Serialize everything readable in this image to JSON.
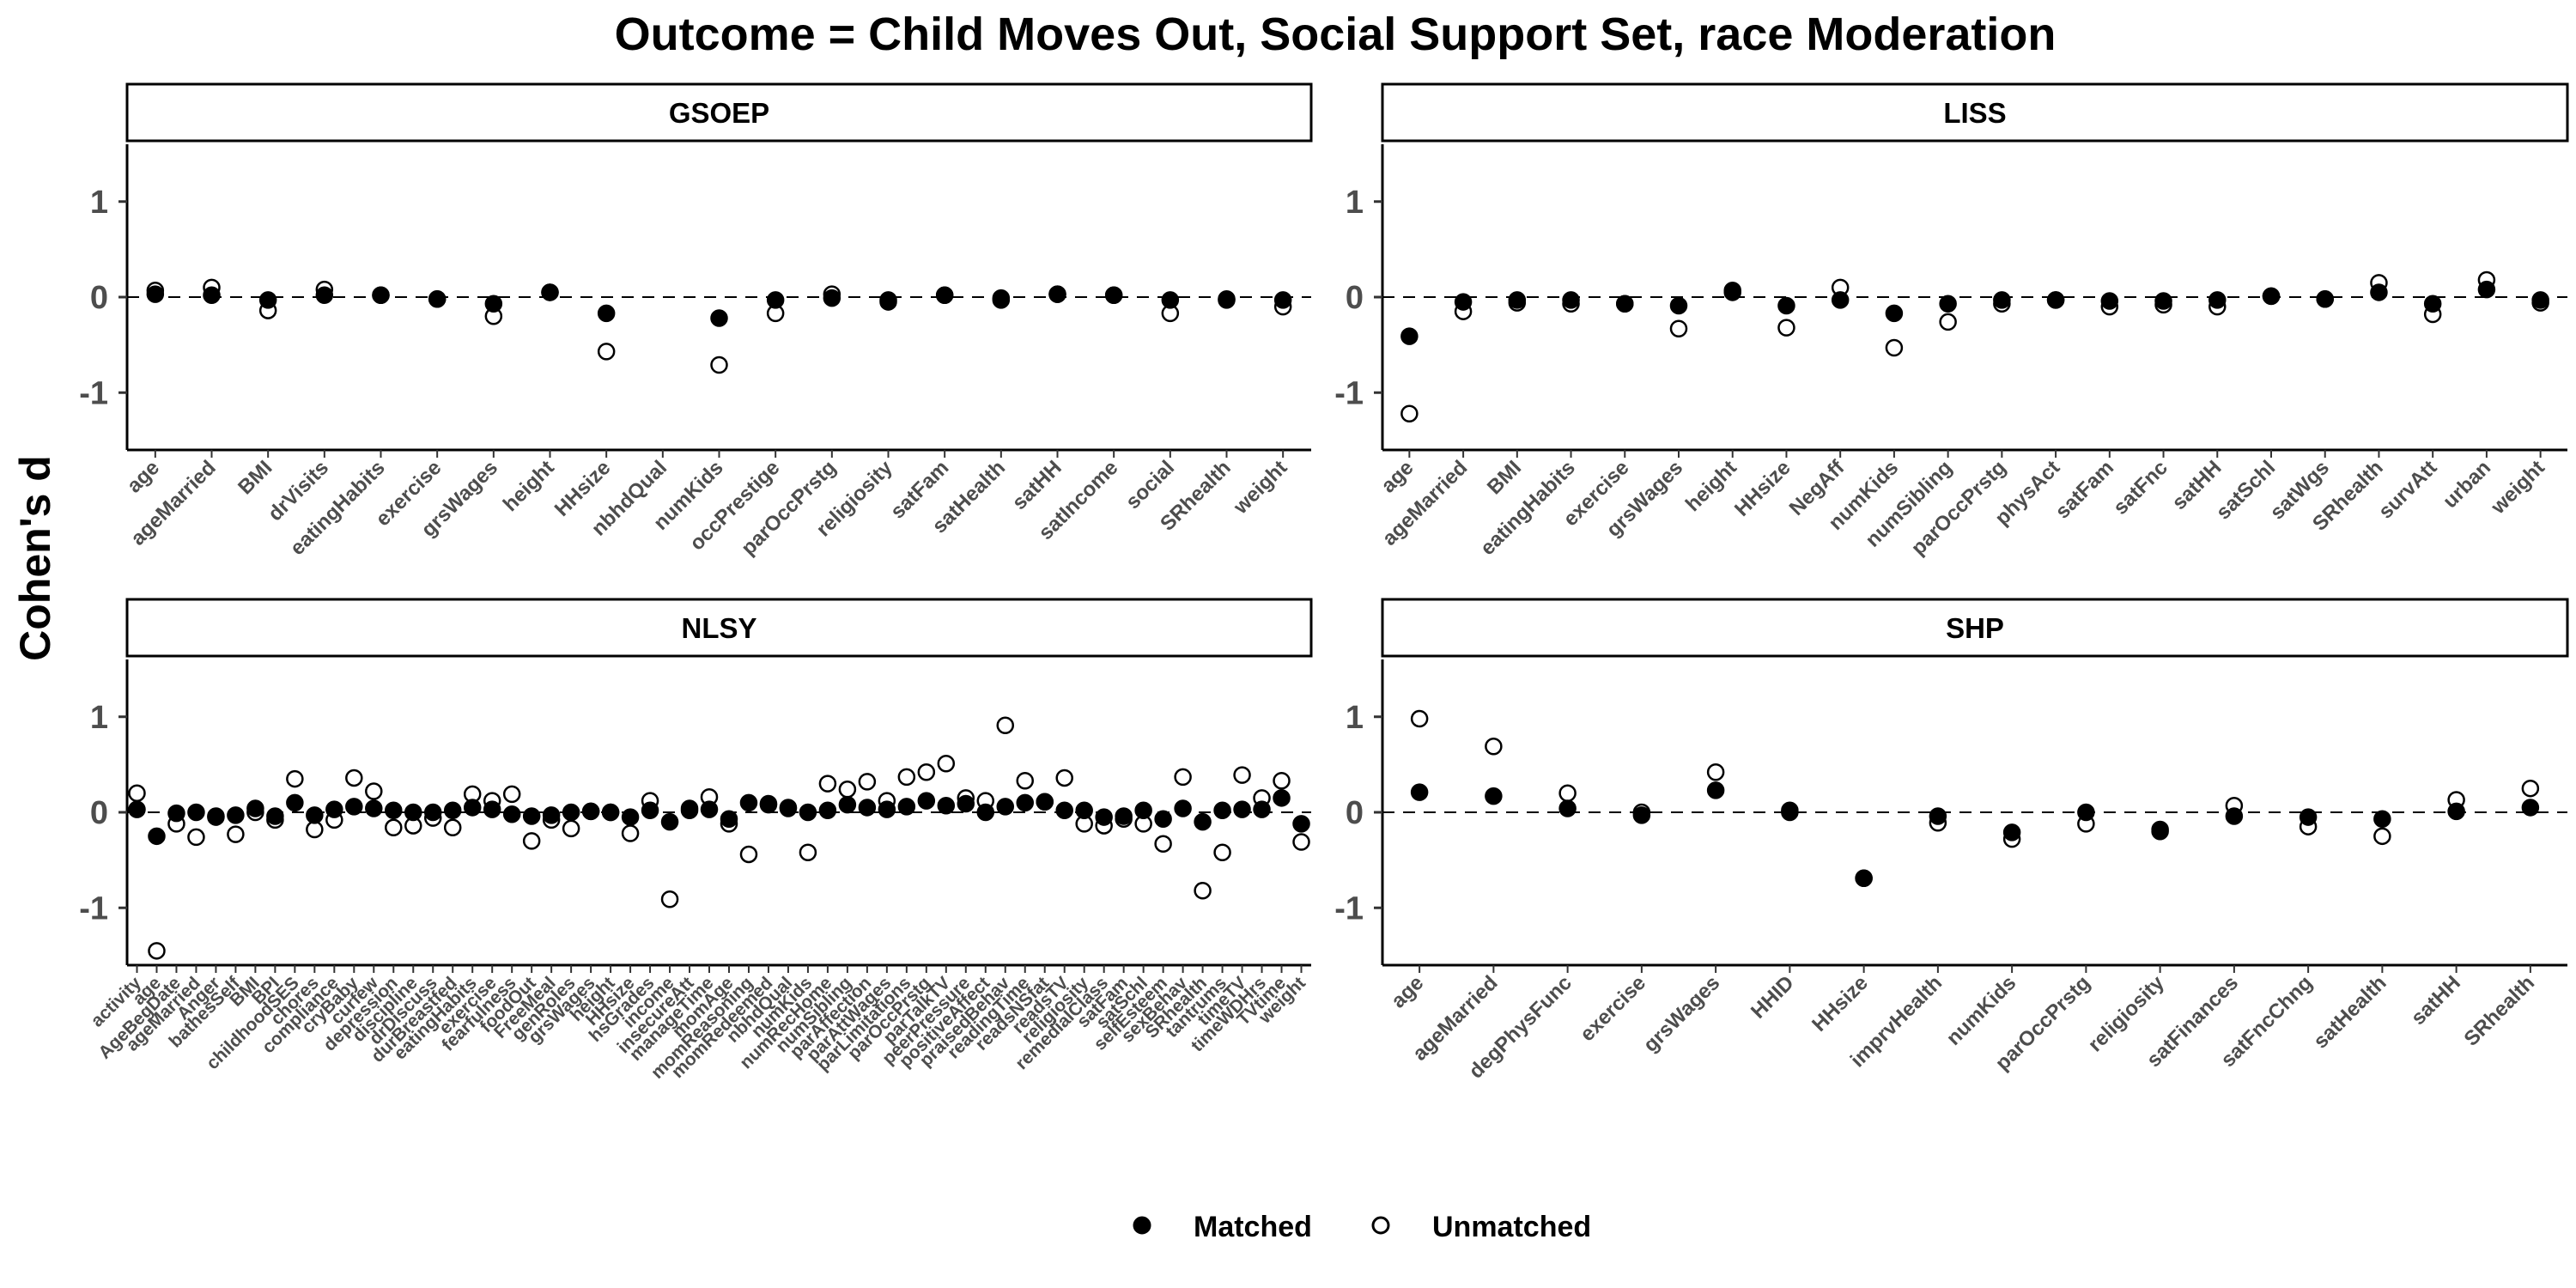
{
  "chart_data": {
    "type": "scatter",
    "title": "Outcome = Child Moves Out, Social Support Set, race Moderation",
    "ylabel": "Cohen's d",
    "xlabel": "",
    "ylim": [
      -1.6,
      1.6
    ],
    "yticks": [
      -1,
      0,
      1
    ],
    "reference_line": 0,
    "grid": false,
    "legend": {
      "placement": "bottom",
      "entries": [
        "Matched",
        "Unmatched"
      ]
    },
    "panels": [
      {
        "name": "GSOEP",
        "categories": [
          "age",
          "ageMarried",
          "BMI",
          "drVisits",
          "eatingHabits",
          "exercise",
          "grsWages",
          "height",
          "HHsize",
          "nbhdQual",
          "numKids",
          "occPrestige",
          "parOccPrstg",
          "religiosity",
          "satFam",
          "satHealth",
          "satHH",
          "satIncome",
          "social",
          "SRhealth",
          "weight"
        ],
        "series": [
          {
            "name": "Matched",
            "values": [
              0.03,
              0.02,
              -0.03,
              0.02,
              0.02,
              -0.02,
              -0.07,
              0.05,
              -0.17,
              null,
              -0.22,
              -0.03,
              -0.01,
              -0.03,
              0.02,
              -0.01,
              0.03,
              0.02,
              -0.03,
              -0.02,
              -0.03
            ]
          },
          {
            "name": "Unmatched",
            "values": [
              0.07,
              0.1,
              -0.14,
              0.08,
              0.02,
              -0.02,
              -0.2,
              0.05,
              -0.57,
              null,
              -0.71,
              -0.17,
              0.03,
              -0.05,
              0.02,
              -0.03,
              0.03,
              0.02,
              -0.17,
              -0.03,
              -0.1
            ]
          }
        ]
      },
      {
        "name": "LISS",
        "categories": [
          "age",
          "ageMarried",
          "BMI",
          "eatingHabits",
          "exercise",
          "grsWages",
          "height",
          "HHsize",
          "NegAff",
          "numKids",
          "numSibling",
          "parOccPrstg",
          "physAct",
          "satFam",
          "satFnc",
          "satHH",
          "satSchl",
          "satWgs",
          "SRhealth",
          "survAtt",
          "urban",
          "weight"
        ],
        "series": [
          {
            "name": "Matched",
            "values": [
              -0.41,
              -0.05,
              -0.03,
              -0.03,
              -0.07,
              -0.09,
              0.05,
              -0.09,
              -0.03,
              -0.17,
              -0.07,
              -0.03,
              -0.03,
              -0.04,
              -0.04,
              -0.03,
              0.01,
              -0.02,
              0.05,
              -0.07,
              0.08,
              -0.03
            ]
          },
          {
            "name": "Unmatched",
            "values": [
              -1.22,
              -0.15,
              -0.06,
              -0.07,
              -0.07,
              -0.33,
              0.07,
              -0.32,
              0.1,
              -0.53,
              -0.26,
              -0.07,
              -0.03,
              -0.1,
              -0.08,
              -0.1,
              0.01,
              -0.02,
              0.15,
              -0.18,
              0.18,
              -0.06
            ]
          }
        ]
      },
      {
        "name": "NLSY",
        "categories": [
          "activity",
          "age",
          "AgeBegDate",
          "ageMarried",
          "Anger",
          "bathesSelf",
          "BMI",
          "BPI",
          "childhoodSES",
          "chores",
          "compliance",
          "cryBaby",
          "curfew",
          "depression",
          "discipline",
          "drDiscuss",
          "durBreastfed",
          "eatingHabits",
          "exercise",
          "fearfulness",
          "foodOut",
          "FreeMeal",
          "genRoles",
          "grsWages",
          "height",
          "HHsize",
          "hsGrades",
          "income",
          "insecureAtt",
          "manageTime",
          "momAge",
          "momReasoning",
          "momRedeemed",
          "nbhdQual",
          "numKids",
          "numRecHome",
          "numSibling",
          "parAffection",
          "parAttWages",
          "parLimitations",
          "parOccPrstg",
          "parTalkTV",
          "peerPressure",
          "positiveAffect",
          "praisedBehav",
          "readingTime",
          "readsNSfat",
          "readsTV",
          "religiosity",
          "remedialClass",
          "satFam",
          "satSchl",
          "selfEsteem",
          "sexBehav",
          "SRhealth",
          "tantrums",
          "timeTV",
          "timeWDHrs",
          "TVtime",
          "weight"
        ],
        "series": [
          {
            "name": "Matched",
            "values": [
              0.03,
              -0.25,
              -0.01,
              0.0,
              -0.04,
              -0.03,
              0.04,
              -0.04,
              0.1,
              -0.03,
              0.03,
              0.06,
              0.04,
              0.02,
              0.0,
              0.0,
              0.02,
              0.05,
              0.03,
              -0.02,
              -0.04,
              -0.03,
              0.0,
              0.01,
              0.0,
              -0.05,
              0.02,
              -0.1,
              0.04,
              0.03,
              -0.07,
              0.1,
              0.09,
              0.04,
              0.0,
              0.02,
              0.08,
              0.05,
              0.03,
              0.06,
              0.12,
              0.07,
              0.09,
              0.0,
              0.06,
              0.1,
              0.11,
              0.02,
              0.02,
              -0.05,
              -0.04,
              0.02,
              -0.07,
              0.04,
              -0.1,
              0.02,
              0.03,
              0.03,
              0.15,
              -0.12
            ]
          },
          {
            "name": "Unmatched",
            "values": [
              0.2,
              -1.45,
              -0.12,
              -0.26,
              -0.05,
              -0.23,
              0.0,
              -0.08,
              0.35,
              -0.18,
              -0.08,
              0.36,
              0.22,
              -0.16,
              -0.14,
              -0.06,
              -0.16,
              0.19,
              0.12,
              0.19,
              -0.3,
              -0.08,
              -0.17,
              0.01,
              0.0,
              -0.22,
              0.12,
              -0.91,
              0.02,
              0.16,
              -0.12,
              -0.44,
              0.08,
              0.05,
              -0.42,
              0.3,
              0.24,
              0.32,
              0.12,
              0.37,
              0.42,
              0.51,
              0.15,
              0.12,
              0.91,
              0.33,
              0.11,
              0.36,
              -0.12,
              -0.14,
              -0.07,
              -0.12,
              -0.33,
              0.37,
              -0.82,
              -0.42,
              0.39,
              0.15,
              0.33,
              -0.31
            ]
          }
        ]
      },
      {
        "name": "SHP",
        "categories": [
          "age",
          "ageMarried",
          "degPhysFunc",
          "exercise",
          "grsWages",
          "HHID",
          "HHsize",
          "imprvHealth",
          "numKids",
          "parOccPrstg",
          "religiosity",
          "satFinances",
          "satFncChng",
          "satHealth",
          "satHH",
          "SRhealth"
        ],
        "series": [
          {
            "name": "Matched",
            "values": [
              0.21,
              0.17,
              0.04,
              -0.03,
              0.23,
              0.0,
              -0.69,
              -0.04,
              -0.21,
              0.0,
              -0.18,
              -0.04,
              -0.05,
              -0.07,
              0.01,
              0.05
            ]
          },
          {
            "name": "Unmatched",
            "values": [
              0.98,
              0.69,
              0.2,
              0.0,
              0.42,
              0.02,
              -0.69,
              -0.11,
              -0.28,
              -0.12,
              -0.2,
              0.07,
              -0.15,
              -0.25,
              0.13,
              0.25
            ]
          }
        ]
      }
    ]
  },
  "colors": {
    "matched_fill": "#000000",
    "unmatched_fill": "#ffffff",
    "stroke": "#000000",
    "axis_text": "#4d4d4d",
    "title_text": "#000000"
  }
}
